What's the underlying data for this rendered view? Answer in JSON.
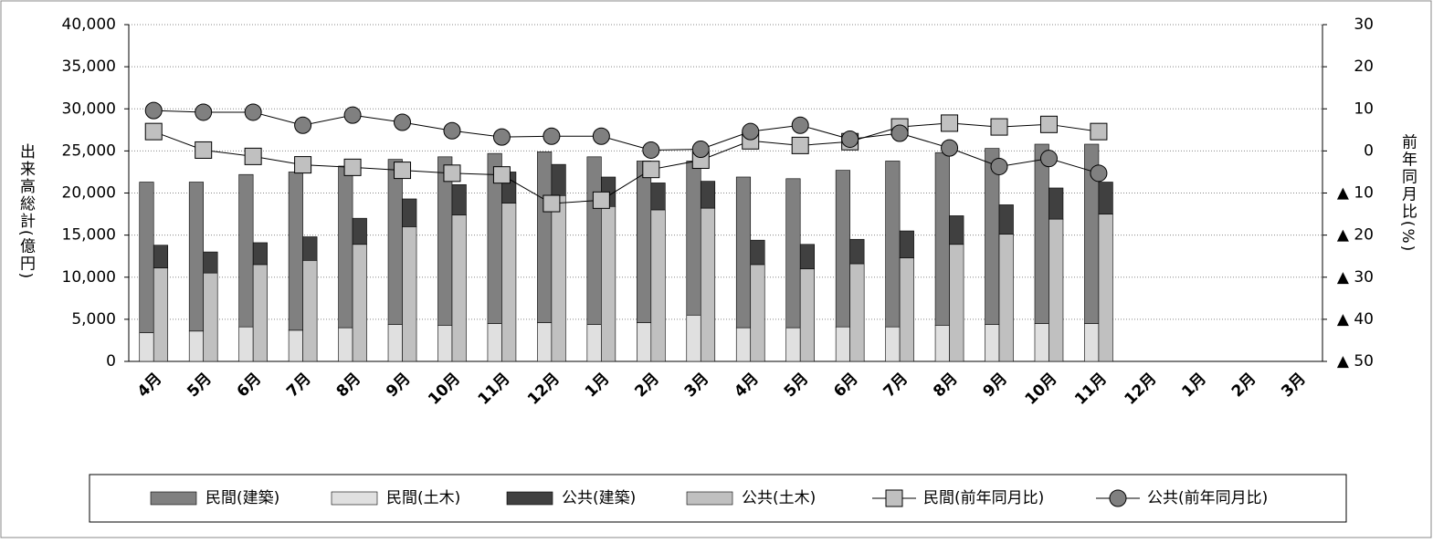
{
  "chart_data": {
    "type": "bar",
    "categories": [
      "4月",
      "5月",
      "6月",
      "7月",
      "8月",
      "9月",
      "10月",
      "11月",
      "12月",
      "1月",
      "2月",
      "3月",
      "4月",
      "5月",
      "6月",
      "7月",
      "8月",
      "9月",
      "10月",
      "11月",
      "12月",
      "1月",
      "2月",
      "3月"
    ],
    "series": [
      {
        "name": "民間(建築)",
        "type": "bar",
        "stack": 0,
        "color": "#808080",
        "values": [
          17900,
          17700,
          18100,
          18800,
          19200,
          19600,
          20000,
          20200,
          20300,
          19900,
          19200,
          18300,
          17900,
          17700,
          18600,
          19700,
          20500,
          20900,
          21300,
          21300,
          null,
          null,
          null,
          null
        ]
      },
      {
        "name": "民間(土木)",
        "type": "bar",
        "stack": 0,
        "color": "#e0e0e0",
        "values": [
          3400,
          3600,
          4100,
          3700,
          4000,
          4400,
          4300,
          4500,
          4600,
          4400,
          4600,
          5500,
          4000,
          4000,
          4100,
          4100,
          4300,
          4400,
          4500,
          4500,
          null,
          null,
          null,
          null
        ]
      },
      {
        "name": "公共(建築)",
        "type": "bar",
        "stack": 1,
        "color": "#404040",
        "values": [
          2700,
          2500,
          2600,
          2800,
          3100,
          3300,
          3600,
          3700,
          3700,
          3500,
          3200,
          3200,
          2900,
          2900,
          2900,
          3200,
          3400,
          3500,
          3700,
          3800,
          null,
          null,
          null,
          null
        ]
      },
      {
        "name": "公共(土木)",
        "type": "bar",
        "stack": 1,
        "color": "#c0c0c0",
        "values": [
          11100,
          10500,
          11500,
          12000,
          13900,
          16000,
          17400,
          18800,
          19700,
          18400,
          18000,
          18200,
          11500,
          11000,
          11600,
          12300,
          13900,
          15100,
          16900,
          17500,
          null,
          null,
          null,
          null
        ]
      },
      {
        "name": "民間(前年同月比)",
        "type": "line",
        "axis": "y2",
        "marker": "square",
        "color": "#c0c0c0",
        "values": [
          4.6,
          0.2,
          -1.3,
          -3.3,
          -3.9,
          -4.6,
          -5.3,
          -5.7,
          -12.5,
          -11.7,
          -4.4,
          -2.2,
          2.4,
          1.3,
          2.2,
          5.7,
          6.6,
          5.7,
          6.3,
          4.6,
          null,
          null,
          null,
          null
        ]
      },
      {
        "name": "公共(前年同月比)",
        "type": "line",
        "axis": "y2",
        "marker": "circle",
        "color": "#808080",
        "values": [
          9.6,
          9.2,
          9.2,
          6.1,
          8.5,
          6.8,
          4.8,
          3.3,
          3.5,
          3.5,
          0.2,
          0.4,
          4.6,
          6.1,
          2.8,
          4.2,
          0.7,
          -3.7,
          -1.8,
          -5.3,
          null,
          null,
          null,
          null
        ]
      }
    ],
    "ylabel": "出来高総計(億円)",
    "y2label": "前年同月比(%)",
    "ylim": [
      0,
      40000
    ],
    "yticks": [
      0,
      {
        "value": 5000,
        "label": "5,000"
      },
      {
        "value": 10000,
        "label": "10,000"
      },
      {
        "value": 15000,
        "label": "15,000"
      },
      {
        "value": 20000,
        "label": "20,000"
      },
      {
        "value": 25000,
        "label": "25,000"
      },
      {
        "value": 30000,
        "label": "30,000"
      },
      {
        "value": 35000,
        "label": "35,000"
      },
      {
        "value": 40000,
        "label": "40,000"
      }
    ],
    "y2lim": [
      -50,
      30
    ],
    "y2ticks": [
      30,
      20,
      10,
      0,
      {
        "value": -10,
        "label": "▲ 10"
      },
      {
        "value": -20,
        "label": "▲ 20"
      },
      {
        "value": -30,
        "label": "▲ 30"
      },
      {
        "value": -40,
        "label": "▲ 40"
      },
      {
        "value": -50,
        "label": "▲ 50"
      }
    ],
    "grid": true,
    "legend": "bottom"
  }
}
